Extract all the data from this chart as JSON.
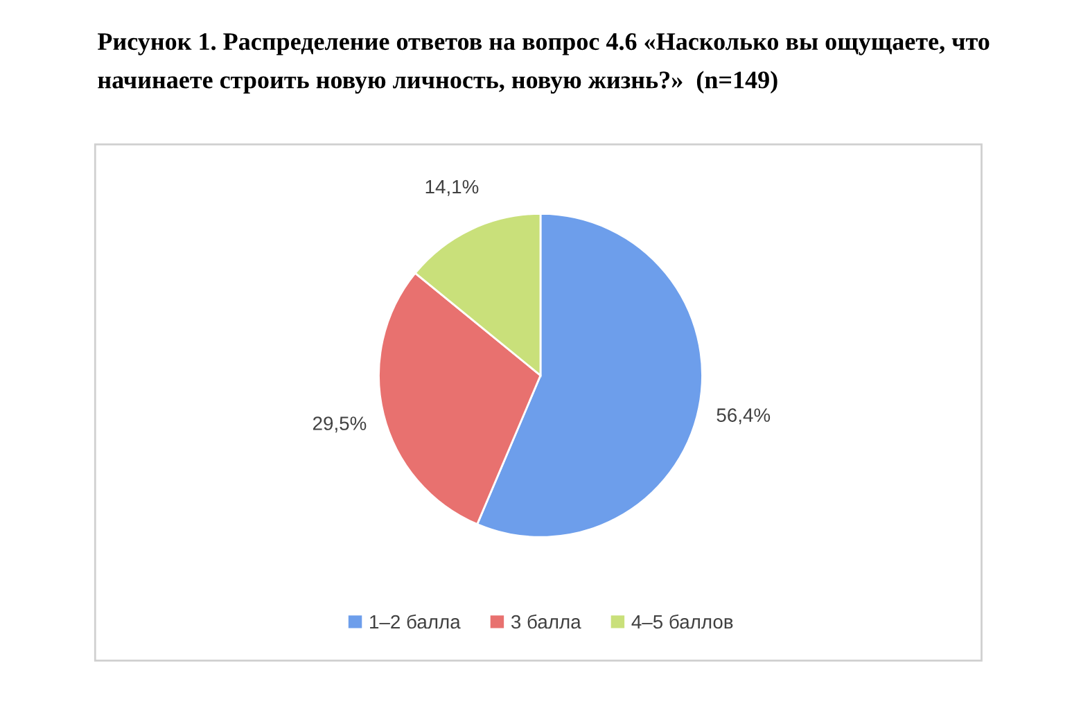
{
  "chart_data": {
    "type": "pie",
    "title": "Рисунок 1. Распределение ответов на вопрос 4.6 «Насколько вы ощущаете, что начинаете строить новую личность, новую жизнь?»  (n=149)",
    "categories": [
      "1–2 балла",
      "3 балла",
      "4–5 баллов"
    ],
    "values": [
      56.4,
      29.5,
      14.1
    ],
    "value_labels": [
      "56,4%",
      "29,5%",
      "14,1%"
    ],
    "colors": [
      "#6d9eeb",
      "#e8716f",
      "#c9e07a"
    ],
    "legend": "bottom"
  }
}
